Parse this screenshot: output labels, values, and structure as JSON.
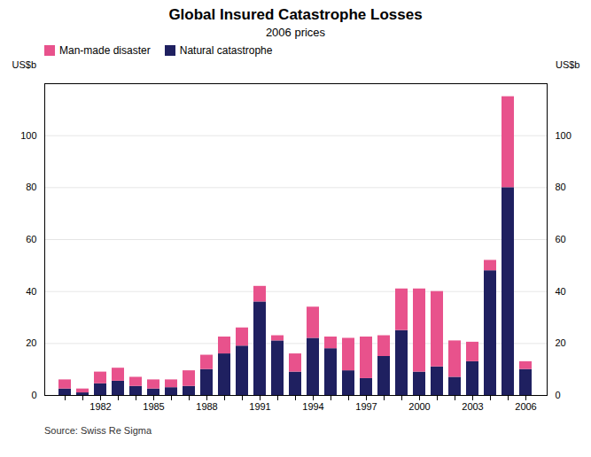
{
  "chart_data": {
    "type": "bar",
    "title": "Global Insured Catastrophe Losses",
    "subtitle": "2006 prices",
    "source": "Source: Swiss Re Sigma",
    "ylabel": "US$b",
    "y2label": "US$b",
    "categories": [
      null,
      null,
      "1982",
      null,
      null,
      "1985",
      null,
      null,
      "1988",
      null,
      null,
      "1991",
      null,
      null,
      "1994",
      null,
      null,
      "1997",
      null,
      null,
      "2000",
      null,
      null,
      "2003",
      null,
      null,
      "2006"
    ],
    "series": [
      {
        "name": "Natural catastrophe",
        "color": "#1f2060",
        "values": [
          2.5,
          1.0,
          4.5,
          5.5,
          3.5,
          2.5,
          3.0,
          3.5,
          10.0,
          16.0,
          19.0,
          36.0,
          21.0,
          9.0,
          22.0,
          18.0,
          9.5,
          6.5,
          15.0,
          25.0,
          9.0,
          11.0,
          7.0,
          13.0,
          48.0,
          80.0,
          10.0
        ]
      },
      {
        "name": "Man-made disaster",
        "color": "#e8528c",
        "values": [
          3.5,
          1.5,
          4.5,
          5.0,
          3.5,
          3.5,
          3.0,
          6.0,
          5.5,
          6.5,
          7.0,
          6.0,
          2.0,
          7.0,
          12.0,
          4.5,
          12.5,
          16.0,
          8.0,
          16.0,
          32.0,
          29.0,
          14.0,
          7.5,
          4.0,
          35.0,
          3.0
        ]
      }
    ],
    "stacked": true,
    "ylim": [
      0,
      120
    ],
    "yticks": [
      0,
      20,
      40,
      60,
      80,
      100
    ],
    "grid": true,
    "legend": "upper left"
  }
}
